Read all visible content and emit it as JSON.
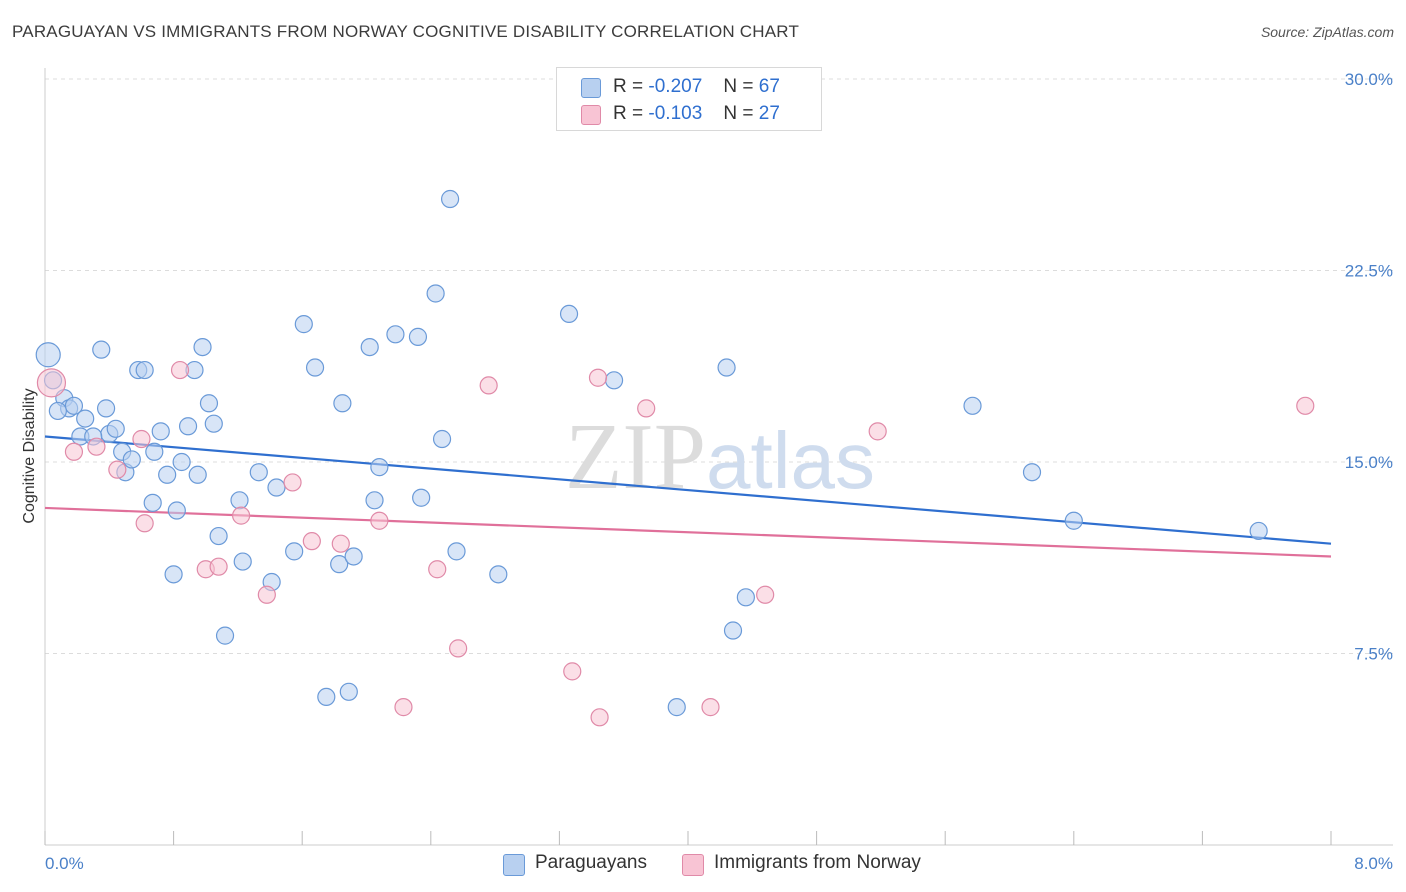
{
  "title": "PARAGUAYAN VS IMMIGRANTS FROM NORWAY COGNITIVE DISABILITY CORRELATION CHART",
  "source": "Source: ZipAtlas.com",
  "watermark": "ZIPatlas",
  "legend": {
    "r_label": "R =",
    "n_label": "N =",
    "rows": [
      {
        "r": "-0.207",
        "n": "67",
        "color": "#b8d0f0",
        "border": "#6a9ad8"
      },
      {
        "r": "-0.103",
        "n": "27",
        "color": "#f8c4d4",
        "border": "#e08aa8"
      }
    ]
  },
  "bottom_legend": [
    {
      "label": "Paraguayans",
      "color": "#b8d0f0",
      "border": "#6a9ad8"
    },
    {
      "label": "Immigrants from Norway",
      "color": "#f8c4d4",
      "border": "#e08aa8"
    }
  ],
  "chart_data": {
    "type": "scatter",
    "title": "PARAGUAYAN VS IMMIGRANTS FROM NORWAY COGNITIVE DISABILITY CORRELATION CHART",
    "xlabel": "",
    "ylabel": "Cognitive Disability",
    "xlim": [
      0.0,
      8.0
    ],
    "ylim": [
      0.0,
      30.0
    ],
    "x_tick_labels": [
      "0.0%",
      "8.0%"
    ],
    "y_ticks": [
      7.5,
      15.0,
      22.5,
      30.0
    ],
    "y_tick_labels": [
      "7.5%",
      "15.0%",
      "22.5%",
      "30.0%"
    ],
    "grid": true,
    "series": [
      {
        "name": "Paraguayans",
        "color": "#6a9ad8",
        "fill": "#b8d0f0",
        "line_color": "#2f6fcf",
        "trend": {
          "x": [
            0.0,
            8.0
          ],
          "y": [
            16.0,
            11.8
          ]
        },
        "points": [
          [
            0.02,
            19.2
          ],
          [
            0.05,
            18.2
          ],
          [
            0.12,
            17.5
          ],
          [
            0.15,
            17.1
          ],
          [
            0.18,
            17.2
          ],
          [
            0.25,
            16.7
          ],
          [
            0.22,
            16.0
          ],
          [
            0.35,
            19.4
          ],
          [
            0.38,
            17.1
          ],
          [
            0.4,
            16.1
          ],
          [
            0.44,
            16.3
          ],
          [
            0.48,
            15.4
          ],
          [
            0.5,
            14.6
          ],
          [
            0.54,
            15.1
          ],
          [
            0.58,
            18.6
          ],
          [
            0.62,
            18.6
          ],
          [
            0.67,
            13.4
          ],
          [
            0.68,
            15.4
          ],
          [
            0.72,
            16.2
          ],
          [
            0.76,
            14.5
          ],
          [
            0.8,
            10.6
          ],
          [
            0.82,
            13.1
          ],
          [
            0.85,
            15.0
          ],
          [
            0.89,
            16.4
          ],
          [
            0.93,
            18.6
          ],
          [
            0.95,
            14.5
          ],
          [
            0.98,
            19.5
          ],
          [
            1.02,
            17.3
          ],
          [
            1.05,
            16.5
          ],
          [
            1.08,
            12.1
          ],
          [
            1.12,
            8.2
          ],
          [
            1.21,
            13.5
          ],
          [
            1.23,
            11.1
          ],
          [
            1.33,
            14.6
          ],
          [
            1.41,
            10.3
          ],
          [
            1.44,
            14.0
          ],
          [
            1.55,
            11.5
          ],
          [
            1.61,
            20.4
          ],
          [
            1.68,
            18.7
          ],
          [
            1.75,
            5.8
          ],
          [
            1.83,
            11.0
          ],
          [
            1.85,
            17.3
          ],
          [
            1.89,
            6.0
          ],
          [
            1.92,
            11.3
          ],
          [
            2.02,
            19.5
          ],
          [
            2.05,
            13.5
          ],
          [
            2.08,
            14.8
          ],
          [
            2.18,
            20.0
          ],
          [
            2.32,
            19.9
          ],
          [
            2.34,
            13.6
          ],
          [
            2.43,
            21.6
          ],
          [
            2.47,
            15.9
          ],
          [
            2.52,
            25.3
          ],
          [
            2.56,
            11.5
          ],
          [
            2.82,
            10.6
          ],
          [
            3.26,
            20.8
          ],
          [
            3.54,
            18.2
          ],
          [
            3.93,
            5.4
          ],
          [
            4.28,
            8.4
          ],
          [
            4.36,
            9.7
          ],
          [
            4.24,
            18.7
          ],
          [
            5.77,
            17.2
          ],
          [
            6.14,
            14.6
          ],
          [
            6.4,
            12.7
          ],
          [
            7.55,
            12.3
          ],
          [
            0.08,
            17.0
          ],
          [
            0.3,
            16.0
          ]
        ]
      },
      {
        "name": "Immigrants from Norway",
        "color": "#e08aa8",
        "fill": "#f8c4d4",
        "line_color": "#e0709a",
        "trend": {
          "x": [
            0.0,
            8.0
          ],
          "y": [
            13.2,
            11.3
          ]
        },
        "points": [
          [
            0.04,
            18.1
          ],
          [
            0.18,
            15.4
          ],
          [
            0.32,
            15.6
          ],
          [
            0.45,
            14.7
          ],
          [
            0.62,
            12.6
          ],
          [
            0.6,
            15.9
          ],
          [
            0.84,
            18.6
          ],
          [
            1.0,
            10.8
          ],
          [
            1.08,
            10.9
          ],
          [
            1.22,
            12.9
          ],
          [
            1.38,
            9.8
          ],
          [
            1.54,
            14.2
          ],
          [
            1.66,
            11.9
          ],
          [
            1.84,
            11.8
          ],
          [
            2.08,
            12.7
          ],
          [
            2.23,
            5.4
          ],
          [
            2.44,
            10.8
          ],
          [
            2.57,
            7.7
          ],
          [
            2.76,
            18.0
          ],
          [
            3.28,
            6.8
          ],
          [
            3.44,
            18.3
          ],
          [
            3.45,
            5.0
          ],
          [
            3.74,
            17.1
          ],
          [
            4.14,
            5.4
          ],
          [
            4.48,
            9.8
          ],
          [
            5.18,
            16.2
          ],
          [
            7.84,
            17.2
          ]
        ]
      }
    ]
  }
}
